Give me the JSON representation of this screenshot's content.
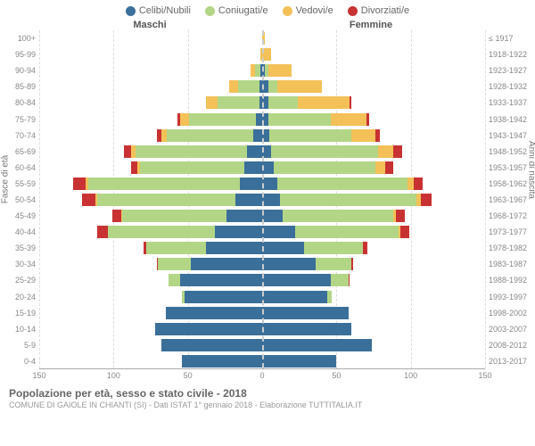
{
  "chart": {
    "type": "population-pyramid",
    "title": "Popolazione per età, sesso e stato civile - 2018",
    "subtitle": "COMUNE DI GAIOLE IN CHIANTI (SI) - Dati ISTAT 1° gennaio 2018 - Elaborazione TUTTITALIA.IT",
    "header_left": "Maschi",
    "header_right": "Femmine",
    "y_label_left": "Fasce di età",
    "y_label_right": "Anni di nascita",
    "legend": [
      {
        "label": "Celibi/Nubili",
        "color": "#3a6f9a"
      },
      {
        "label": "Coniugati/e",
        "color": "#b3d686"
      },
      {
        "label": "Vedovi/e",
        "color": "#f3c158"
      },
      {
        "label": "Divorziati/e",
        "color": "#c83232"
      }
    ],
    "colors": {
      "celibi": "#3a6f9a",
      "coniugati": "#b3d686",
      "vedovi": "#f3c158",
      "divorziati": "#c83232",
      "grid": "#dddddd",
      "center": "#cccccc",
      "text": "#888888",
      "bg": "#ffffff"
    },
    "x_max": 150,
    "x_ticks": [
      150,
      100,
      50,
      0,
      50,
      100,
      150
    ],
    "rows": [
      {
        "age": "100+",
        "birth": "≤ 1917",
        "m": [
          0,
          0,
          0,
          0
        ],
        "f": [
          0,
          0,
          2,
          0
        ]
      },
      {
        "age": "95-99",
        "birth": "1918-1922",
        "m": [
          0,
          0,
          1,
          0
        ],
        "f": [
          0,
          0,
          6,
          0
        ]
      },
      {
        "age": "90-94",
        "birth": "1923-1927",
        "m": [
          1,
          4,
          3,
          0
        ],
        "f": [
          2,
          2,
          16,
          0
        ]
      },
      {
        "age": "85-89",
        "birth": "1928-1932",
        "m": [
          2,
          14,
          6,
          0
        ],
        "f": [
          4,
          6,
          30,
          0
        ]
      },
      {
        "age": "80-84",
        "birth": "1933-1937",
        "m": [
          2,
          28,
          8,
          0
        ],
        "f": [
          4,
          20,
          35,
          1
        ]
      },
      {
        "age": "75-79",
        "birth": "1938-1942",
        "m": [
          4,
          45,
          6,
          2
        ],
        "f": [
          4,
          42,
          24,
          2
        ]
      },
      {
        "age": "70-74",
        "birth": "1943-1947",
        "m": [
          6,
          58,
          4,
          3
        ],
        "f": [
          5,
          55,
          16,
          3
        ]
      },
      {
        "age": "65-69",
        "birth": "1948-1952",
        "m": [
          10,
          75,
          3,
          5
        ],
        "f": [
          6,
          72,
          10,
          6
        ]
      },
      {
        "age": "60-64",
        "birth": "1953-1957",
        "m": [
          12,
          70,
          2,
          4
        ],
        "f": [
          8,
          68,
          7,
          5
        ]
      },
      {
        "age": "55-59",
        "birth": "1958-1962",
        "m": [
          15,
          102,
          2,
          8
        ],
        "f": [
          10,
          88,
          4,
          6
        ]
      },
      {
        "age": "50-54",
        "birth": "1963-1967",
        "m": [
          18,
          93,
          1,
          9
        ],
        "f": [
          12,
          92,
          3,
          7
        ]
      },
      {
        "age": "45-49",
        "birth": "1968-1972",
        "m": [
          24,
          70,
          1,
          6
        ],
        "f": [
          14,
          74,
          2,
          6
        ]
      },
      {
        "age": "40-44",
        "birth": "1973-1977",
        "m": [
          32,
          72,
          0,
          7
        ],
        "f": [
          22,
          70,
          1,
          6
        ]
      },
      {
        "age": "35-39",
        "birth": "1978-1982",
        "m": [
          38,
          40,
          0,
          2
        ],
        "f": [
          28,
          40,
          0,
          3
        ]
      },
      {
        "age": "30-34",
        "birth": "1983-1987",
        "m": [
          48,
          22,
          0,
          1
        ],
        "f": [
          36,
          24,
          0,
          1
        ]
      },
      {
        "age": "25-29",
        "birth": "1988-1992",
        "m": [
          55,
          8,
          0,
          0
        ],
        "f": [
          46,
          12,
          0,
          1
        ]
      },
      {
        "age": "20-24",
        "birth": "1993-1997",
        "m": [
          52,
          2,
          0,
          0
        ],
        "f": [
          44,
          3,
          0,
          0
        ]
      },
      {
        "age": "15-19",
        "birth": "1998-2002",
        "m": [
          65,
          0,
          0,
          0
        ],
        "f": [
          58,
          0,
          0,
          0
        ]
      },
      {
        "age": "10-14",
        "birth": "2003-2007",
        "m": [
          72,
          0,
          0,
          0
        ],
        "f": [
          60,
          0,
          0,
          0
        ]
      },
      {
        "age": "5-9",
        "birth": "2008-2012",
        "m": [
          68,
          0,
          0,
          0
        ],
        "f": [
          74,
          0,
          0,
          0
        ]
      },
      {
        "age": "0-4",
        "birth": "2013-2017",
        "m": [
          54,
          0,
          0,
          0
        ],
        "f": [
          50,
          0,
          0,
          0
        ]
      }
    ]
  }
}
